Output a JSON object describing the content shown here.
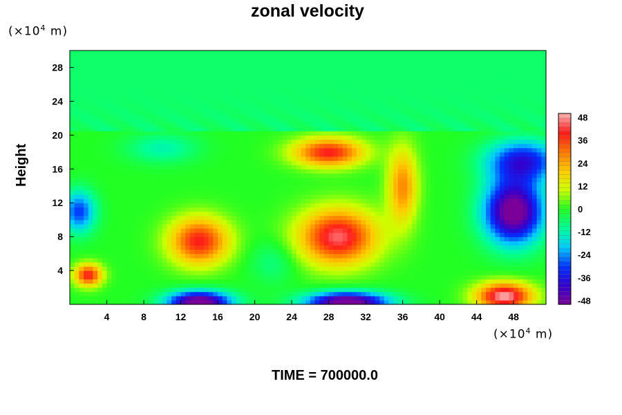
{
  "chart_data": {
    "type": "heatmap",
    "title": "zonal velocity",
    "ylabel": "Height",
    "xlabel": "",
    "x_unit_label": "(×10",
    "x_unit_exp": "4",
    "x_unit_tail": " m)",
    "y_unit_label": "(×10",
    "y_unit_exp": "4",
    "y_unit_tail": " m)",
    "xlim": [
      0,
      51.5
    ],
    "ylim": [
      0,
      30
    ],
    "x_ticks": [
      4,
      8,
      12,
      16,
      20,
      24,
      28,
      32,
      36,
      40,
      44,
      48
    ],
    "y_ticks": [
      4,
      8,
      12,
      16,
      20,
      24,
      28
    ],
    "colorbar": {
      "range": [
        -50,
        50
      ],
      "ticks": [
        48,
        36,
        24,
        12,
        0,
        -12,
        -24,
        -36,
        -48
      ],
      "colors": [
        "#7a0099",
        "#3300cc",
        "#0033ff",
        "#00ccff",
        "#00ff99",
        "#22ff22",
        "#ccff00",
        "#ffcc00",
        "#ff7700",
        "#ff1a1a",
        "#ffb3b3"
      ]
    },
    "features": [
      {
        "x": 2,
        "y": 3.5,
        "value": 40,
        "sx": 1.5,
        "sy": 1.3
      },
      {
        "x": 14,
        "y": 7.5,
        "value": 40,
        "sx": 3.2,
        "sy": 2.8
      },
      {
        "x": 29,
        "y": 8,
        "value": 45,
        "sx": 4.2,
        "sy": 3.3
      },
      {
        "x": 28,
        "y": 18,
        "value": 40,
        "sx": 3.8,
        "sy": 1.7
      },
      {
        "x": 36,
        "y": 14,
        "value": 28,
        "sx": 1.6,
        "sy": 4.5
      },
      {
        "x": 48,
        "y": 11,
        "value": -55,
        "sx": 3.2,
        "sy": 3.8
      },
      {
        "x": 49,
        "y": 17,
        "value": -35,
        "sx": 4,
        "sy": 2.5
      },
      {
        "x": 1,
        "y": 11,
        "value": -30,
        "sx": 1.8,
        "sy": 2.5
      },
      {
        "x": 14,
        "y": 0.3,
        "value": -55,
        "sx": 3.5,
        "sy": 1.3
      },
      {
        "x": 30,
        "y": 0.3,
        "value": -55,
        "sx": 4.5,
        "sy": 1.2
      },
      {
        "x": 47,
        "y": 1,
        "value": 50,
        "sx": 3,
        "sy": 1.6
      },
      {
        "x": 10,
        "y": 18.5,
        "value": -12,
        "sx": 4,
        "sy": 1.8
      },
      {
        "x": 22,
        "y": 5,
        "value": -8,
        "sx": 2.5,
        "sy": 2.5
      }
    ]
  },
  "footer": {
    "time_label": "TIME = 700000.0"
  }
}
